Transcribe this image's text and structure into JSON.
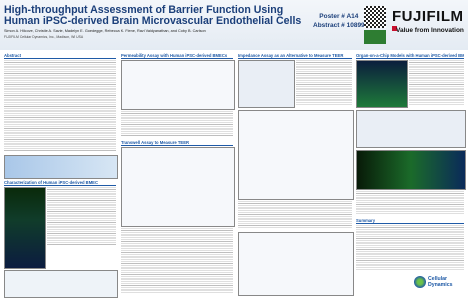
{
  "header": {
    "title_line_1": "High-throughput Assessment of Barrier Function Using",
    "title_line_2": "Human iPSC-derived Brain Microvascular Endothelial Cells",
    "authors": "Simon A. Hilcove, Christie A. Savie, Madelyn E. Goedegge, Rebecca K. Fiene, Ravi Vaidyanathan, and Coby B. Carlson",
    "affiliation": "FUJIFILM Cellular Dynamics, Inc., Madison, WI USA",
    "poster": "Poster # A14",
    "abstract": "Abstract # 10899",
    "brand": "FUJIFILM",
    "tagline": "Value from Innovation"
  },
  "sections": {
    "abstract": "Abstract",
    "characterization": "Characterization of Human iPSC-derived BMEC",
    "permeability": "Permeability Assay with Human iPSC-derived BMECs",
    "transwell": "Transwell Assay to Measure TEER",
    "impedance": "Impedance Assay as an Alternative to Measure TEER",
    "organ_chip": "Organ-on-a-Chip Models with Human iPSC-derived BMEC",
    "summary": "Summary"
  },
  "footer": {
    "logo_line_1": "Cellular",
    "logo_line_2": "Dynamics"
  }
}
